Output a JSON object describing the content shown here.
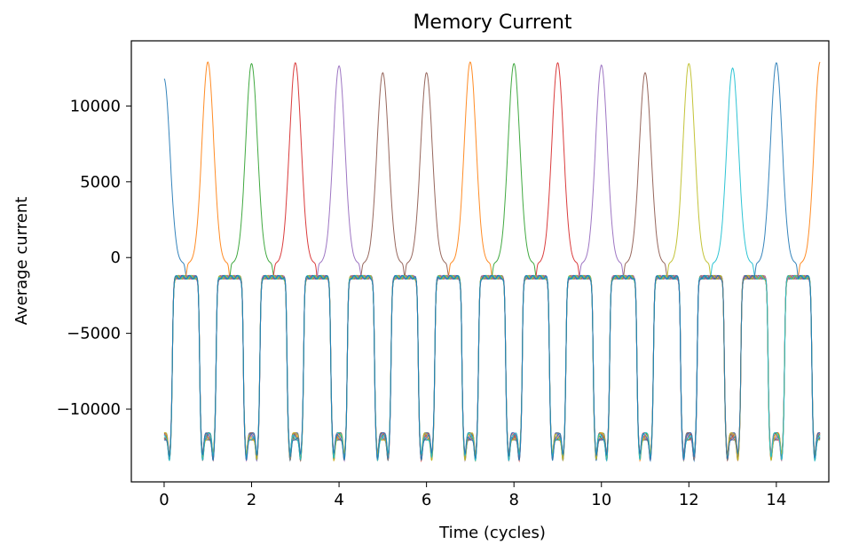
{
  "chart_data": {
    "type": "line",
    "title": "Memory Current",
    "xlabel": "Time (cycles)",
    "ylabel": "Average current",
    "xlim": [
      -0.75,
      15.2
    ],
    "ylim": [
      -14800,
      14300
    ],
    "xticks": [
      0,
      2,
      4,
      6,
      8,
      10,
      12,
      14
    ],
    "xtick_labels": [
      "0",
      "2",
      "4",
      "6",
      "8",
      "10",
      "12",
      "14"
    ],
    "yticks": [
      -10000,
      -5000,
      0,
      5000,
      10000
    ],
    "ytick_labels": [
      "−10000",
      "−5000",
      "0",
      "5000",
      "10000"
    ],
    "grid": false,
    "legend": "none",
    "pulse_width": 0.42,
    "trough": -11800,
    "trough_dip": -13200,
    "plateau": -1300,
    "high_floor": -400,
    "series": [
      {
        "color": "#1f77b4",
        "peak_cycles": [
          0
        ],
        "peak_values": [
          11800
        ]
      },
      {
        "color": "#ff7f0e",
        "peak_cycles": [
          1,
          7,
          15
        ],
        "peak_values": [
          12900,
          12900,
          12900
        ]
      },
      {
        "color": "#2ca02c",
        "peak_cycles": [
          2,
          8
        ],
        "peak_values": [
          12800,
          12800
        ]
      },
      {
        "color": "#d62728",
        "peak_cycles": [
          3,
          9
        ],
        "peak_values": [
          12850,
          12850
        ]
      },
      {
        "color": "#9467bd",
        "peak_cycles": [
          4,
          10
        ],
        "peak_values": [
          12650,
          12700
        ]
      },
      {
        "color": "#8c564b",
        "peak_cycles": [
          5,
          6,
          11
        ],
        "peak_values": [
          12200,
          12200,
          12200
        ]
      },
      {
        "color": "#e377c2",
        "peak_cycles": [],
        "peak_values": []
      },
      {
        "color": "#7f7f7f",
        "peak_cycles": [],
        "peak_values": []
      },
      {
        "color": "#bcbd22",
        "peak_cycles": [
          12
        ],
        "peak_values": [
          12800
        ]
      },
      {
        "color": "#17becf",
        "peak_cycles": [
          13
        ],
        "peak_values": [
          12500
        ]
      },
      {
        "color": "#1f77b4",
        "peak_cycles": [
          14
        ],
        "peak_values": [
          12850
        ]
      }
    ]
  }
}
